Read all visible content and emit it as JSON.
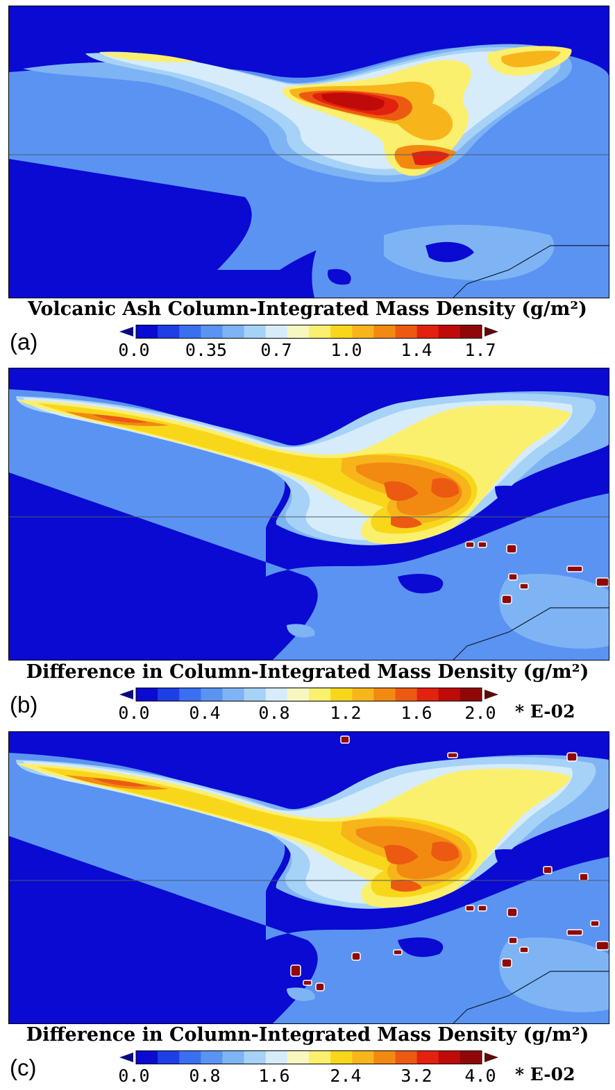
{
  "colors": [
    "#0a0ad2",
    "#1f3fe6",
    "#3a6ff0",
    "#5b93f2",
    "#7eb4f4",
    "#a6d2f7",
    "#d6ecfb",
    "#f7f7c0",
    "#fbef6e",
    "#f8d71b",
    "#f7b51b",
    "#f28a12",
    "#ec5a12",
    "#e3210f",
    "#bf0a0a",
    "#8f0707"
  ],
  "arrow_low_color": "#0a0a80",
  "arrow_high_color": "#5a0a0a",
  "panels": [
    {
      "label": "(a)",
      "title": "Volcanic Ash Column-Integrated Mass Density (g/m²)",
      "ticks": [
        "0.0",
        "0.35",
        "0.7",
        "1.0",
        "1.4",
        "1.7"
      ],
      "scale_note": ""
    },
    {
      "label": "(b)",
      "title": "Difference in Column-Integrated Mass Density (g/m²)",
      "ticks": [
        "0.0",
        "0.4",
        "0.8",
        "1.2",
        "1.6",
        "2.0"
      ],
      "scale_note": "* E-02"
    },
    {
      "label": "(c)",
      "title": "Difference in Column-Integrated Mass Density (g/m²)",
      "ticks": [
        "0.0",
        "0.8",
        "1.6",
        "2.4",
        "3.2",
        "4.0"
      ],
      "scale_note": "* E-02"
    }
  ],
  "chart_data": [
    {
      "type": "heatmap",
      "title": "Volcanic Ash Column-Integrated Mass Density (g/m²)",
      "panel": "(a)",
      "colorbar_range": [
        0.0,
        1.7
      ],
      "colorbar_ticks": [
        0.0,
        0.35,
        0.7,
        1.0,
        1.4,
        1.7
      ],
      "units": "g/m²"
    },
    {
      "type": "heatmap",
      "title": "Difference in Column-Integrated Mass Density (g/m²)",
      "panel": "(b)",
      "colorbar_range": [
        0.0,
        2.0
      ],
      "colorbar_ticks": [
        0.0,
        0.4,
        0.8,
        1.2,
        1.6,
        2.0
      ],
      "units": "g/m²",
      "scale_factor": "* E-02"
    },
    {
      "type": "heatmap",
      "title": "Difference in Column-Integrated Mass Density (g/m²)",
      "panel": "(c)",
      "colorbar_range": [
        0.0,
        4.0
      ],
      "colorbar_ticks": [
        0.0,
        0.8,
        1.6,
        2.4,
        3.2,
        4.0
      ],
      "units": "g/m²",
      "scale_factor": "* E-02"
    }
  ]
}
